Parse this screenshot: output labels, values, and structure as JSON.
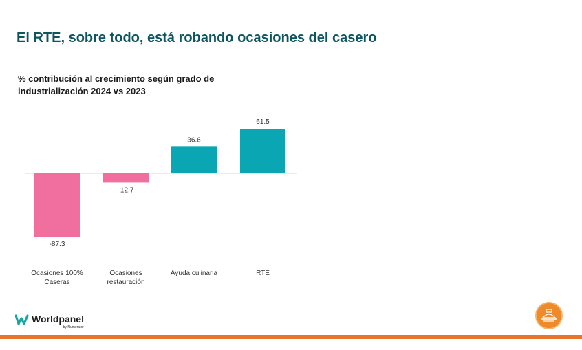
{
  "slide": {
    "title": "El RTE, sobre todo, está robando ocasiones del casero",
    "subtitle": "% contribución al crecimiento según grado de industrialización 2024 vs 2023"
  },
  "chart_data": {
    "type": "bar",
    "categories": [
      "Ocasiones 100% Caseras",
      "Ocasiones restauración",
      "Ayuda culinaria",
      "RTE"
    ],
    "category_label_lines": [
      [
        "Ocasiones 100%",
        "Caseras"
      ],
      [
        "Ocasiones",
        "restauración"
      ],
      [
        "Ayuda culinaria"
      ],
      [
        "RTE"
      ]
    ],
    "values": [
      -87.3,
      -12.7,
      36.6,
      61.5
    ],
    "value_labels": [
      "-87.3",
      "-12.7",
      "36.6",
      "61.5"
    ],
    "colors": [
      "#f06f9f",
      "#f06f9f",
      "#0aa6b4",
      "#0aa6b4"
    ],
    "title": "% contribución al crecimiento según grado de industrialización 2024 vs 2023",
    "xlabel": "",
    "ylabel": "",
    "ylim": [
      -87.3,
      61.5
    ],
    "grid": false,
    "legend": "none"
  },
  "logo": {
    "name": "Worldpanel",
    "sub": "by Numerator",
    "color": "#1aa6a0"
  },
  "badge": {
    "icon": "food-tray-icon",
    "color": "#ef8a2a"
  },
  "footer": {
    "bar_color": "#e8762a"
  }
}
